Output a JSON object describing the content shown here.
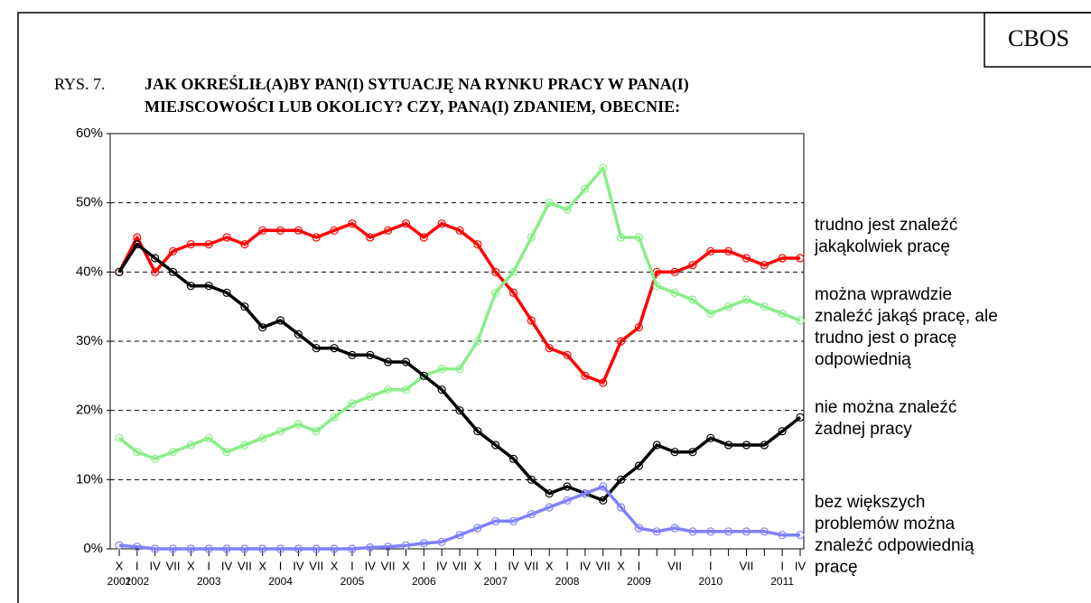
{
  "brand": "CBOS",
  "chart_data": {
    "type": "line",
    "figure_label": "RYS. 7.",
    "title": [
      "JAK OKREŚLIŁ(A)BY PAN(I) SYTUACJĘ NA RYNKU PRACY W PANA(I)",
      "MIEJSCOWOŚCI LUB OKOLICY? CZY, PANA(I) ZDANIEM, OBECNIE:"
    ],
    "categories": [
      "X",
      "I",
      "IV",
      "VII",
      "X",
      "I",
      "IV",
      "VII",
      "X",
      "I",
      "IV",
      "VII",
      "X",
      "I",
      "IV",
      "VII",
      "X",
      "I",
      "IV",
      "VII",
      "X",
      "I",
      "IV",
      "VII",
      "X",
      "I",
      "IV",
      "VII",
      "X",
      "I",
      null,
      "VII",
      null,
      "I",
      null,
      "VII",
      null,
      "I",
      "IV"
    ],
    "years": [
      "2001",
      "2002",
      null,
      null,
      null,
      "2003",
      null,
      null,
      null,
      "2004",
      null,
      null,
      null,
      "2005",
      null,
      null,
      null,
      "2006",
      null,
      null,
      null,
      "2007",
      null,
      null,
      null,
      "2008",
      null,
      null,
      null,
      "2009",
      null,
      null,
      null,
      "2010",
      null,
      null,
      null,
      "2011",
      null
    ],
    "series": [
      {
        "name": "trudno jest znaleźć jakąkolwiek pracę",
        "color": "#ff0000",
        "values": [
          40,
          45,
          40,
          43,
          44,
          44,
          45,
          44,
          46,
          46,
          46,
          45,
          46,
          47,
          45,
          46,
          47,
          45,
          47,
          46,
          44,
          40,
          37,
          33,
          29,
          28,
          25,
          24,
          30,
          32,
          40,
          40,
          41,
          43,
          43,
          42,
          41,
          42,
          42
        ]
      },
      {
        "name": "można wprawdzie znaleźć jakąś pracę, ale trudno jest o pracę odpowiednią",
        "color": "#88ee88",
        "values": [
          16,
          14,
          13,
          14,
          15,
          16,
          14,
          15,
          16,
          17,
          18,
          17,
          19,
          21,
          22,
          23,
          23,
          25,
          26,
          26,
          30,
          37,
          40,
          45,
          50,
          49,
          52,
          55,
          45,
          45,
          38,
          37,
          36,
          34,
          35,
          36,
          35,
          34,
          33
        ]
      },
      {
        "name": "nie można znaleźć żadnej pracy",
        "color": "#000000",
        "values": [
          40,
          44,
          42,
          40,
          38,
          38,
          37,
          35,
          32,
          33,
          31,
          29,
          29,
          28,
          28,
          27,
          27,
          25,
          23,
          20,
          17,
          15,
          13,
          10,
          8,
          9,
          8,
          7,
          10,
          12,
          15,
          14,
          14,
          16,
          15,
          15,
          15,
          17,
          19
        ]
      },
      {
        "name": "bez większych problemów można znaleźć odpowiednią pracę",
        "color": "#8080ff",
        "values": [
          0.5,
          0.3,
          0,
          0,
          0,
          0,
          0,
          0,
          0,
          0,
          0,
          0,
          0,
          0,
          0.2,
          0.3,
          0.5,
          0.8,
          1,
          2,
          3,
          4,
          4,
          5,
          6,
          7,
          8,
          9,
          6,
          3,
          2.5,
          3,
          2.5,
          2.5,
          2.5,
          2.5,
          2.5,
          2,
          2
        ]
      }
    ],
    "ylim": [
      0,
      60
    ],
    "yticks": [
      {
        "value": 0,
        "label": "0%"
      },
      {
        "value": 10,
        "label": "10%"
      },
      {
        "value": 20,
        "label": "20%"
      },
      {
        "value": 30,
        "label": "30%"
      },
      {
        "value": 40,
        "label": "40%"
      },
      {
        "value": 50,
        "label": "50%"
      },
      {
        "value": 60,
        "label": "60%"
      }
    ],
    "grid": true
  }
}
